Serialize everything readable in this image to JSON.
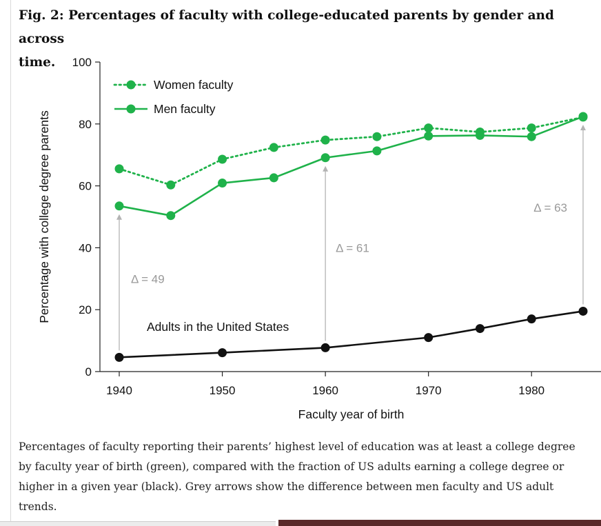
{
  "figure": {
    "title_line1": "Fig. 2: Percentages of faculty with college-educated parents by gender and across",
    "title_line2": "time.",
    "caption_lines": [
      "Percentages of faculty reporting their parents’ highest level of education was at least a college degree",
      "by faculty year of birth (green), compared with the fraction of US adults earning a college degree or",
      "higher in a given year (black). Grey arrows show the difference between men faculty and US adult",
      "trends."
    ]
  },
  "chart_data": {
    "type": "line",
    "xlabel": "Faculty year of birth",
    "ylabel": "Percentage with college degree parents",
    "xlim": [
      1940,
      1985
    ],
    "ylim": [
      0,
      100
    ],
    "x_ticks": [
      1940,
      1950,
      1960,
      1970,
      1980
    ],
    "y_ticks": [
      0,
      20,
      40,
      60,
      80,
      100
    ],
    "grid": false,
    "legend_position": "top-left",
    "series": [
      {
        "name": "Women faculty",
        "style": "dotted",
        "color": "#1fb24a",
        "x": [
          1940,
          1945,
          1950,
          1955,
          1960,
          1965,
          1970,
          1975,
          1980,
          1985
        ],
        "values": [
          65.5,
          60.3,
          68.6,
          72.4,
          74.8,
          75.9,
          78.7,
          77.4,
          78.7,
          82.2
        ]
      },
      {
        "name": "Men faculty",
        "style": "solid",
        "color": "#1fb24a",
        "x": [
          1940,
          1945,
          1950,
          1955,
          1960,
          1965,
          1970,
          1975,
          1980,
          1985
        ],
        "values": [
          53.5,
          50.4,
          60.9,
          62.6,
          69.1,
          71.3,
          76.1,
          76.3,
          75.9,
          82.4
        ]
      },
      {
        "name": "Adults in the United States",
        "style": "solid",
        "color": "#111111",
        "x": [
          1940,
          1950,
          1960,
          1970,
          1975,
          1980,
          1985
        ],
        "values": [
          4.6,
          6.1,
          7.7,
          11.0,
          13.9,
          17.0,
          19.5
        ]
      }
    ],
    "annotations": [
      {
        "text": "Δ = 49",
        "x": 1940,
        "from": 4.6,
        "to": 53.5
      },
      {
        "text": "Δ = 61",
        "x": 1960,
        "from": 7.7,
        "to": 69.1
      },
      {
        "text": "Δ = 63",
        "x": 1985,
        "from": 19.5,
        "to": 82.4
      }
    ],
    "colors": {
      "green": "#1fb24a",
      "black": "#111111",
      "arrow_grey": "#b3b3b3",
      "annotation_grey": "#999999"
    }
  }
}
